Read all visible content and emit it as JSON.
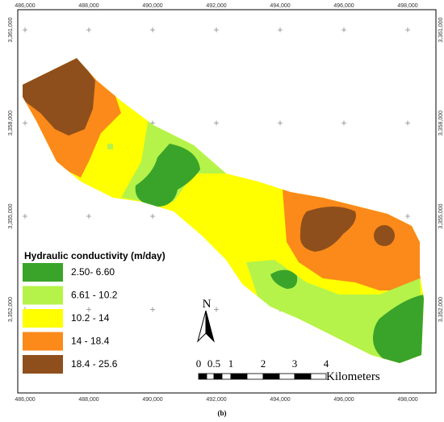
{
  "x_labels": [
    "486,000",
    "488,000",
    "490,000",
    "492,000",
    "494,000",
    "496,000",
    "498,000"
  ],
  "y_labels": [
    "3,361,000",
    "3,358,000",
    "3,355,000",
    "3,352,000"
  ],
  "legend": {
    "title": "Hydraulic conductivity (m/day)",
    "entries": [
      {
        "label": "2.50- 6.60",
        "color": "#3aa42a"
      },
      {
        "label": "6.61 - 10.2",
        "color": "#b5f34a"
      },
      {
        "label": "10.2 - 14",
        "color": "#ffff00"
      },
      {
        "label": "14 - 18.4",
        "color": "#fb8a1a"
      },
      {
        "label": "18.4 - 25.6",
        "color": "#8f4f1c"
      }
    ]
  },
  "north": "N",
  "scale": {
    "labels": [
      "0",
      "0.5",
      "1",
      "2",
      "3",
      "4"
    ],
    "unit": "Kilometers"
  },
  "caption": "(b)"
}
